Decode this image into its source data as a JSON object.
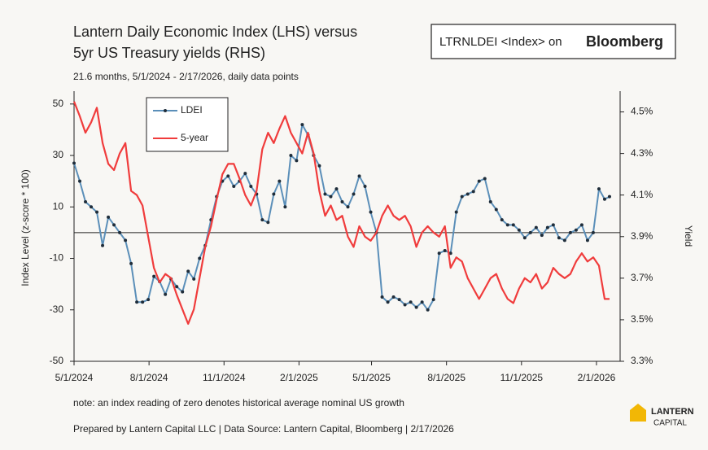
{
  "chart_data": {
    "type": "line",
    "title": [
      "Lantern Daily Economic Index (LHS) versus",
      "5yr US Treasury yields (RHS)"
    ],
    "subtitle": "21.6 months, 5/1/2024 - 2/17/2026, daily data points",
    "bloomberg_tag": {
      "text": "LTRNLDEI <Index> on",
      "brand": "Bloomberg"
    },
    "ylabel": "Index Level (z-score * 100)",
    "y2label": "Yield",
    "note": "note: an index reading of zero denotes historical average nominal US growth",
    "footer": "Prepared by Lantern Capital LLC | Data Source: Lantern Capital, Bloomberg | 2/17/2026",
    "logo": [
      "LANTERN",
      "CAPITAL"
    ],
    "legend": "upper left",
    "grid": false,
    "xlim": [
      "2024-05-01",
      "2026-03-02"
    ],
    "xticks": [
      {
        "value": "2024-05-01",
        "label": "5/1/2024"
      },
      {
        "value": "2024-08-01",
        "label": "8/1/2024"
      },
      {
        "value": "2024-11-01",
        "label": "11/1/2024"
      },
      {
        "value": "2025-02-01",
        "label": "2/1/2025"
      },
      {
        "value": "2025-05-01",
        "label": "5/1/2025"
      },
      {
        "value": "2025-08-01",
        "label": "8/1/2025"
      },
      {
        "value": "2025-11-01",
        "label": "11/1/2025"
      },
      {
        "value": "2026-02-01",
        "label": "2/1/2026"
      }
    ],
    "ylim": [
      -50,
      55
    ],
    "yticks": [
      -50,
      -30,
      -10,
      10,
      30,
      50
    ],
    "y2lim": [
      3.3,
      4.6
    ],
    "y2ticks": [
      {
        "value": 3.3,
        "label": "3.3%"
      },
      {
        "value": 3.5,
        "label": "3.5%"
      },
      {
        "value": 3.7,
        "label": "3.7%"
      },
      {
        "value": 3.9,
        "label": "3.9%"
      },
      {
        "value": 4.1,
        "label": "4.1%"
      },
      {
        "value": 4.3,
        "label": "4.3%"
      },
      {
        "value": 4.5,
        "label": "4.5%"
      }
    ],
    "x": [
      "2024-05-01",
      "2024-05-08",
      "2024-05-15",
      "2024-05-22",
      "2024-05-29",
      "2024-06-05",
      "2024-06-12",
      "2024-06-19",
      "2024-06-26",
      "2024-07-03",
      "2024-07-10",
      "2024-07-17",
      "2024-07-24",
      "2024-07-31",
      "2024-08-07",
      "2024-08-14",
      "2024-08-21",
      "2024-08-28",
      "2024-09-04",
      "2024-09-11",
      "2024-09-18",
      "2024-09-25",
      "2024-10-02",
      "2024-10-09",
      "2024-10-16",
      "2024-10-23",
      "2024-10-30",
      "2024-11-06",
      "2024-11-13",
      "2024-11-20",
      "2024-11-27",
      "2024-12-04",
      "2024-12-11",
      "2024-12-18",
      "2024-12-25",
      "2025-01-01",
      "2025-01-08",
      "2025-01-15",
      "2025-01-22",
      "2025-01-29",
      "2025-02-05",
      "2025-02-12",
      "2025-02-19",
      "2025-02-26",
      "2025-03-05",
      "2025-03-12",
      "2025-03-19",
      "2025-03-26",
      "2025-04-02",
      "2025-04-09",
      "2025-04-16",
      "2025-04-23",
      "2025-04-30",
      "2025-05-07",
      "2025-05-14",
      "2025-05-21",
      "2025-05-28",
      "2025-06-04",
      "2025-06-11",
      "2025-06-18",
      "2025-06-25",
      "2025-07-02",
      "2025-07-09",
      "2025-07-16",
      "2025-07-23",
      "2025-07-30",
      "2025-08-06",
      "2025-08-13",
      "2025-08-20",
      "2025-08-27",
      "2025-09-03",
      "2025-09-10",
      "2025-09-17",
      "2025-09-24",
      "2025-10-01",
      "2025-10-08",
      "2025-10-15",
      "2025-10-22",
      "2025-10-29",
      "2025-11-05",
      "2025-11-12",
      "2025-11-19",
      "2025-11-26",
      "2025-12-03",
      "2025-12-10",
      "2025-12-17",
      "2025-12-24",
      "2025-12-31",
      "2026-01-07",
      "2026-01-14",
      "2026-01-21",
      "2026-01-28",
      "2026-02-04",
      "2026-02-11",
      "2026-02-17"
    ],
    "series": [
      {
        "name": "LDEI",
        "color": "#5b8fb9",
        "marker_color": "#1f2d3a",
        "values": [
          27,
          20,
          12,
          10,
          8,
          -5,
          6,
          3,
          0,
          -3,
          -12,
          -27,
          -27,
          -26,
          -17,
          -19,
          -24,
          -18,
          -21,
          -23,
          -15,
          -18,
          -10,
          -5,
          5,
          14,
          20,
          22,
          18,
          20,
          23,
          18,
          15,
          5,
          4,
          15,
          20,
          10,
          30,
          28,
          42,
          38,
          30,
          26,
          15,
          14,
          17,
          12,
          10,
          15,
          22,
          18,
          8,
          0,
          -25,
          -27,
          -25,
          -26,
          -28,
          -27,
          -29,
          -27,
          -30,
          -26,
          -8,
          -7,
          -8,
          8,
          14,
          15,
          16,
          20,
          21,
          12,
          9,
          5,
          3,
          3,
          1,
          -2,
          0,
          2,
          -1,
          2,
          3,
          -2,
          -3,
          0,
          1,
          3,
          -3,
          0,
          17,
          13,
          14
        ]
      },
      {
        "name": "5-year",
        "color": "#f03c3c",
        "axis": "y2",
        "values": [
          4.55,
          4.48,
          4.4,
          4.45,
          4.52,
          4.35,
          4.25,
          4.22,
          4.3,
          4.35,
          4.12,
          4.1,
          4.05,
          3.9,
          3.75,
          3.68,
          3.72,
          3.7,
          3.62,
          3.55,
          3.48,
          3.55,
          3.7,
          3.85,
          3.95,
          4.08,
          4.2,
          4.25,
          4.25,
          4.18,
          4.1,
          4.05,
          4.12,
          4.32,
          4.4,
          4.35,
          4.42,
          4.48,
          4.4,
          4.35,
          4.3,
          4.4,
          4.3,
          4.12,
          4.0,
          4.05,
          3.98,
          4.0,
          3.9,
          3.85,
          3.95,
          3.9,
          3.88,
          3.92,
          4.0,
          4.05,
          4.0,
          3.98,
          4.0,
          3.95,
          3.85,
          3.92,
          3.95,
          3.92,
          3.9,
          3.95,
          3.75,
          3.8,
          3.78,
          3.7,
          3.65,
          3.6,
          3.65,
          3.7,
          3.72,
          3.65,
          3.6,
          3.58,
          3.65,
          3.7,
          3.68,
          3.72,
          3.65,
          3.68,
          3.75,
          3.72,
          3.7,
          3.72,
          3.78,
          3.82,
          3.78,
          3.8,
          3.76,
          3.6,
          3.6
        ]
      }
    ]
  }
}
